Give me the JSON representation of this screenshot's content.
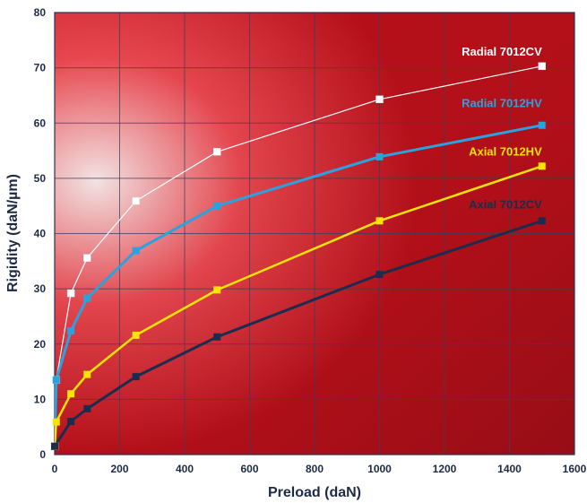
{
  "chart_data": {
    "type": "line",
    "title": "",
    "xlabel": "Preload (daN)",
    "ylabel": "Rigidity (daN/µm)",
    "xlim": [
      0,
      1600
    ],
    "ylim": [
      0,
      80
    ],
    "xticks": [
      0,
      200,
      400,
      600,
      800,
      1000,
      1200,
      1400,
      1600
    ],
    "yticks": [
      0,
      10,
      20,
      30,
      40,
      50,
      60,
      70,
      80
    ],
    "grid": true,
    "legend": "inline labels near line ends",
    "background": {
      "gradient_light": "#f6e6e6",
      "gradient_mid": "#e8474f",
      "gradient_dark": "#b9101a"
    },
    "series": [
      {
        "name": "Radial 7012CV",
        "color": "#ffffff",
        "label_color": "#ffffff",
        "stroke_width": 1.2,
        "x": [
          0,
          5,
          50,
          100,
          250,
          500,
          1000,
          1500
        ],
        "y": [
          1.5,
          13.5,
          29.2,
          35.6,
          45.9,
          54.8,
          64.3,
          70.3
        ]
      },
      {
        "name": "Radial 7012HV",
        "color": "#29a3e0",
        "label_color": "#29a3e0",
        "stroke_width": 3,
        "x": [
          0,
          5,
          50,
          100,
          250,
          500,
          1000,
          1500
        ],
        "y": [
          1.5,
          13.5,
          22.4,
          28.3,
          36.9,
          45.0,
          53.9,
          59.6
        ]
      },
      {
        "name": "Axial 7012HV",
        "color": "#f7e400",
        "label_color": "#f7e400",
        "stroke_width": 2.5,
        "x": [
          0,
          5,
          50,
          100,
          250,
          500,
          1000,
          1500
        ],
        "y": [
          1.5,
          5.9,
          11.0,
          14.5,
          21.6,
          29.8,
          42.3,
          52.2
        ]
      },
      {
        "name": "Axial 7012CV",
        "color": "#1b2d4e",
        "label_color": "#1b2d4e",
        "stroke_width": 3,
        "x": [
          0,
          50,
          100,
          250,
          500,
          1000,
          1500
        ],
        "y": [
          1.5,
          6.0,
          8.3,
          14.1,
          21.3,
          32.6,
          42.3
        ]
      }
    ]
  }
}
